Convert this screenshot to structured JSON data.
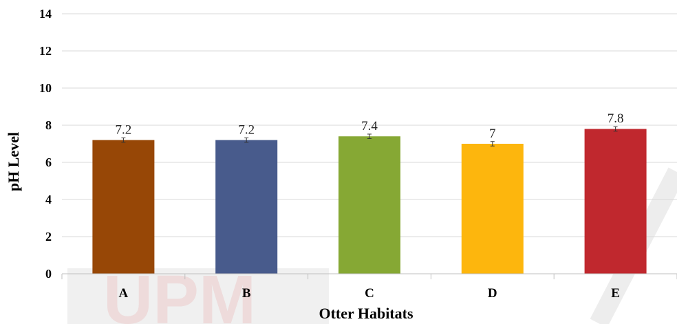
{
  "chart_data": {
    "type": "bar",
    "title": "",
    "xlabel": "Otter Habitats",
    "ylabel": "pH Level",
    "categories": [
      "A",
      "B",
      "C",
      "D",
      "E"
    ],
    "values": [
      7.2,
      7.2,
      7.4,
      7.0,
      7.8
    ],
    "value_labels": [
      "7.2",
      "7.2",
      "7.4",
      "7",
      "7.8"
    ],
    "error": [
      0.12,
      0.12,
      0.12,
      0.12,
      0.12
    ],
    "colors": [
      "#974706",
      "#485b8c",
      "#86a834",
      "#fdb60d",
      "#c0282e"
    ],
    "ylim": [
      0,
      14
    ],
    "yticks": [
      0,
      2,
      4,
      6,
      8,
      10,
      12,
      14
    ],
    "grid": true,
    "legend": "none"
  },
  "watermark": {
    "text": "UPM",
    "color": "#e24a4a"
  }
}
